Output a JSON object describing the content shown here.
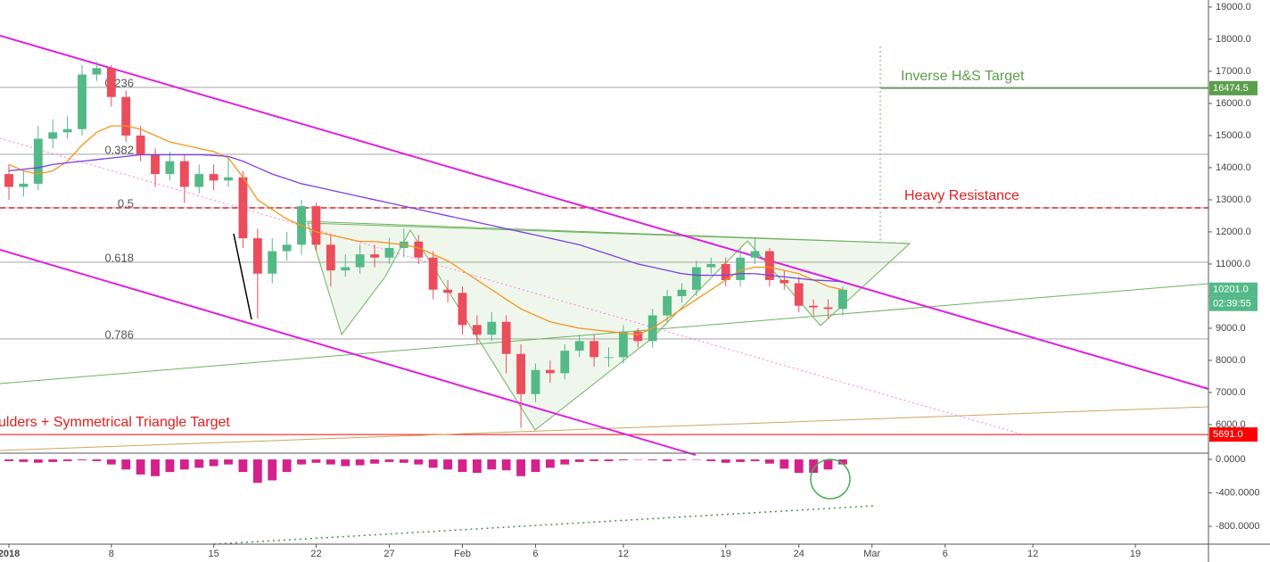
{
  "chart_data": {
    "type": "candlestick",
    "x": [
      0,
      1,
      2,
      3,
      4,
      5,
      6,
      7,
      8,
      9,
      10,
      11,
      12,
      13,
      14,
      15,
      16,
      17,
      18,
      19,
      20,
      21,
      22,
      23,
      24,
      25,
      26,
      27,
      28,
      29,
      30,
      31,
      32,
      33,
      34,
      35,
      36,
      37,
      38,
      39,
      40,
      41,
      42,
      43,
      44,
      45,
      46,
      47,
      48,
      49,
      50,
      51,
      52,
      53,
      54,
      55,
      56,
      57
    ],
    "open": [
      13800,
      13400,
      13500,
      14900,
      15100,
      15200,
      16900,
      17100,
      16200,
      15000,
      14400,
      13800,
      14200,
      13400,
      13800,
      13600,
      13700,
      11800,
      10700,
      11400,
      11600,
      12800,
      11600,
      10800,
      10900,
      11300,
      11200,
      11500,
      11700,
      11200,
      10200,
      10100,
      9100,
      8800,
      9200,
      8200,
      6950,
      7700,
      7600,
      8300,
      8600,
      8100,
      8100,
      8900,
      8600,
      9400,
      10000,
      10200,
      10900,
      11000,
      10500,
      11200,
      11400,
      10500,
      10400,
      9700,
      9650,
      9600
    ],
    "high": [
      14100,
      13900,
      15300,
      15500,
      15600,
      17200,
      17300,
      17200,
      16400,
      15300,
      14600,
      14500,
      14400,
      14100,
      14100,
      14300,
      13900,
      12100,
      11800,
      12000,
      13000,
      12900,
      11900,
      11300,
      11600,
      11600,
      11800,
      12100,
      11900,
      11400,
      10500,
      10300,
      9400,
      9500,
      9400,
      8500,
      7900,
      8000,
      8500,
      8800,
      8800,
      8400,
      9100,
      9000,
      9600,
      10200,
      10400,
      11100,
      11200,
      11200,
      11500,
      11800,
      11500,
      10800,
      10600,
      9900,
      9900,
      10300
    ],
    "low": [
      13000,
      13100,
      13300,
      14600,
      14900,
      15000,
      16700,
      15900,
      14800,
      14200,
      13400,
      13600,
      12900,
      13200,
      13300,
      13400,
      11500,
      9300,
      10400,
      11100,
      11300,
      11400,
      10300,
      10600,
      10700,
      10900,
      11000,
      11200,
      11000,
      9900,
      9800,
      8800,
      8500,
      8600,
      7600,
      5900,
      6700,
      7300,
      7400,
      8100,
      7800,
      7800,
      7900,
      8400,
      8400,
      9200,
      9800,
      10000,
      10700,
      10300,
      10300,
      11000,
      10300,
      10200,
      9500,
      9400,
      9300,
      9400
    ],
    "close": [
      13400,
      13500,
      14900,
      15100,
      15200,
      16900,
      17100,
      16200,
      15000,
      14400,
      13800,
      14200,
      13400,
      13800,
      13600,
      13700,
      11800,
      10700,
      11400,
      11600,
      12800,
      11600,
      10800,
      10900,
      11300,
      11200,
      11500,
      11700,
      11200,
      10200,
      10100,
      9100,
      8800,
      9200,
      8200,
      6950,
      7700,
      7600,
      8300,
      8600,
      8100,
      8100,
      8900,
      8600,
      9400,
      10000,
      10200,
      10900,
      11000,
      10500,
      11200,
      11400,
      10500,
      10400,
      9700,
      9650,
      9600,
      10201
    ],
    "up_color": "#53b987",
    "down_color": "#eb4d5c",
    "ma": [
      {
        "color": "#f7931a",
        "values": [
          14100,
          13900,
          13800,
          13900,
          14200,
          14700,
          15100,
          15300,
          15300,
          15200,
          15000,
          14800,
          14700,
          14600,
          14500,
          14300,
          13700,
          13000,
          12700,
          12400,
          12200,
          12000,
          11900,
          11800,
          11700,
          11700,
          11650,
          11600,
          11500,
          11300,
          11100,
          10800,
          10500,
          10200,
          9900,
          9600,
          9400,
          9200,
          9100,
          9000,
          8950,
          8900,
          8850,
          8800,
          9000,
          9300,
          9600,
          9900,
          10200,
          10500,
          10800,
          10900,
          10900,
          10800,
          10700,
          10500,
          10300,
          10200
        ]
      },
      {
        "color": "#7b3fe4",
        "values": [
          13900,
          13950,
          14000,
          14100,
          14150,
          14200,
          14250,
          14300,
          14350,
          14400,
          14400,
          14400,
          14400,
          14400,
          14380,
          14350,
          14200,
          14000,
          13800,
          13650,
          13500,
          13400,
          13300,
          13200,
          13100,
          13000,
          12900,
          12800,
          12700,
          12600,
          12500,
          12400,
          12300,
          12200,
          12100,
          12000,
          11900,
          11800,
          11700,
          11600,
          11450,
          11300,
          11150,
          11000,
          10900,
          10800,
          10700,
          10650,
          10650,
          10650,
          10700,
          10700,
          10650,
          10600,
          10550,
          10500,
          10480,
          10450
        ]
      }
    ],
    "macd_hist": [
      -20,
      -30,
      -40,
      -30,
      -20,
      -10,
      -20,
      -60,
      -120,
      -180,
      -200,
      -150,
      -120,
      -100,
      -80,
      -60,
      -150,
      -280,
      -250,
      -150,
      -60,
      -40,
      -60,
      -80,
      -70,
      -50,
      -30,
      -40,
      -60,
      -100,
      -120,
      -150,
      -160,
      -120,
      -130,
      -200,
      -150,
      -100,
      -60,
      -30,
      -20,
      -20,
      -10,
      -5,
      -10,
      -20,
      -10,
      -5,
      -20,
      -40,
      -30,
      -20,
      -50,
      -110,
      -160,
      -160,
      -120,
      -60
    ],
    "macd_color": "#d5218c",
    "xlim": [
      -0.61,
      82.0
    ],
    "xticks": [
      {
        "value": 0,
        "label": "2018"
      },
      {
        "value": 7,
        "label": "8"
      },
      {
        "value": 14,
        "label": "15"
      },
      {
        "value": 21,
        "label": "22"
      },
      {
        "value": 26,
        "label": "27"
      },
      {
        "value": 31,
        "label": "Feb"
      },
      {
        "value": 36,
        "label": "6"
      },
      {
        "value": 42,
        "label": "12"
      },
      {
        "value": 49,
        "label": "19"
      },
      {
        "value": 54,
        "label": "24"
      },
      {
        "value": 59,
        "label": "Mar"
      },
      {
        "value": 64,
        "label": "6"
      },
      {
        "value": 70,
        "label": "12"
      },
      {
        "value": 77,
        "label": "19"
      }
    ],
    "ylim": [
      5110,
      19220
    ],
    "yticks": [
      {
        "value": 6000,
        "label": "6000.0"
      },
      {
        "value": 7000,
        "label": "7000.0"
      },
      {
        "value": 8000,
        "label": "8000.0"
      },
      {
        "value": 9000,
        "label": "9000.0"
      },
      {
        "value": 10000,
        "label": "10000.0"
      },
      {
        "value": 11000,
        "label": "11000.0"
      },
      {
        "value": 12000,
        "label": "12000.0"
      },
      {
        "value": 13000,
        "label": "13000.0"
      },
      {
        "value": 14000,
        "label": "14000.0"
      },
      {
        "value": 15000,
        "label": "15000.0"
      },
      {
        "value": 16000,
        "label": "16000.0"
      },
      {
        "value": 17000,
        "label": "17000.0"
      },
      {
        "value": 18000,
        "label": "18000.0"
      },
      {
        "value": 19000,
        "label": "19000.0"
      }
    ],
    "y2lim": [
      -1013,
      75
    ],
    "y2ticks": [
      {
        "value": 0,
        "label": "0.0000"
      },
      {
        "value": -400,
        "label": "-400.0000"
      },
      {
        "value": -800,
        "label": "-800.0000"
      }
    ],
    "fib_levels": [
      {
        "value": 16500,
        "label": "0.236"
      },
      {
        "value": 14417,
        "label": "0.382"
      },
      {
        "value": 12750,
        "label": "0.5"
      },
      {
        "value": 11056,
        "label": "0.618"
      },
      {
        "value": 8667,
        "label": "0.786"
      }
    ],
    "resistance": {
      "value": 12750,
      "label": "Heavy Resistance"
    },
    "target": {
      "value": 16474.5,
      "label": "Inverse H&S Target"
    },
    "triangle_target": {
      "value": 5691,
      "label": "ulders + Symmetrical Triangle Target"
    },
    "price_labels": [
      {
        "value": 16474.5,
        "label": "16474.5",
        "color": "#5b9e4d"
      },
      {
        "value": 10201,
        "label": "10201.0",
        "color": "#53b987"
      },
      {
        "value": 5691,
        "label": "5691.0",
        "color": "#ff0000"
      }
    ],
    "countdown": "02:39:55"
  }
}
